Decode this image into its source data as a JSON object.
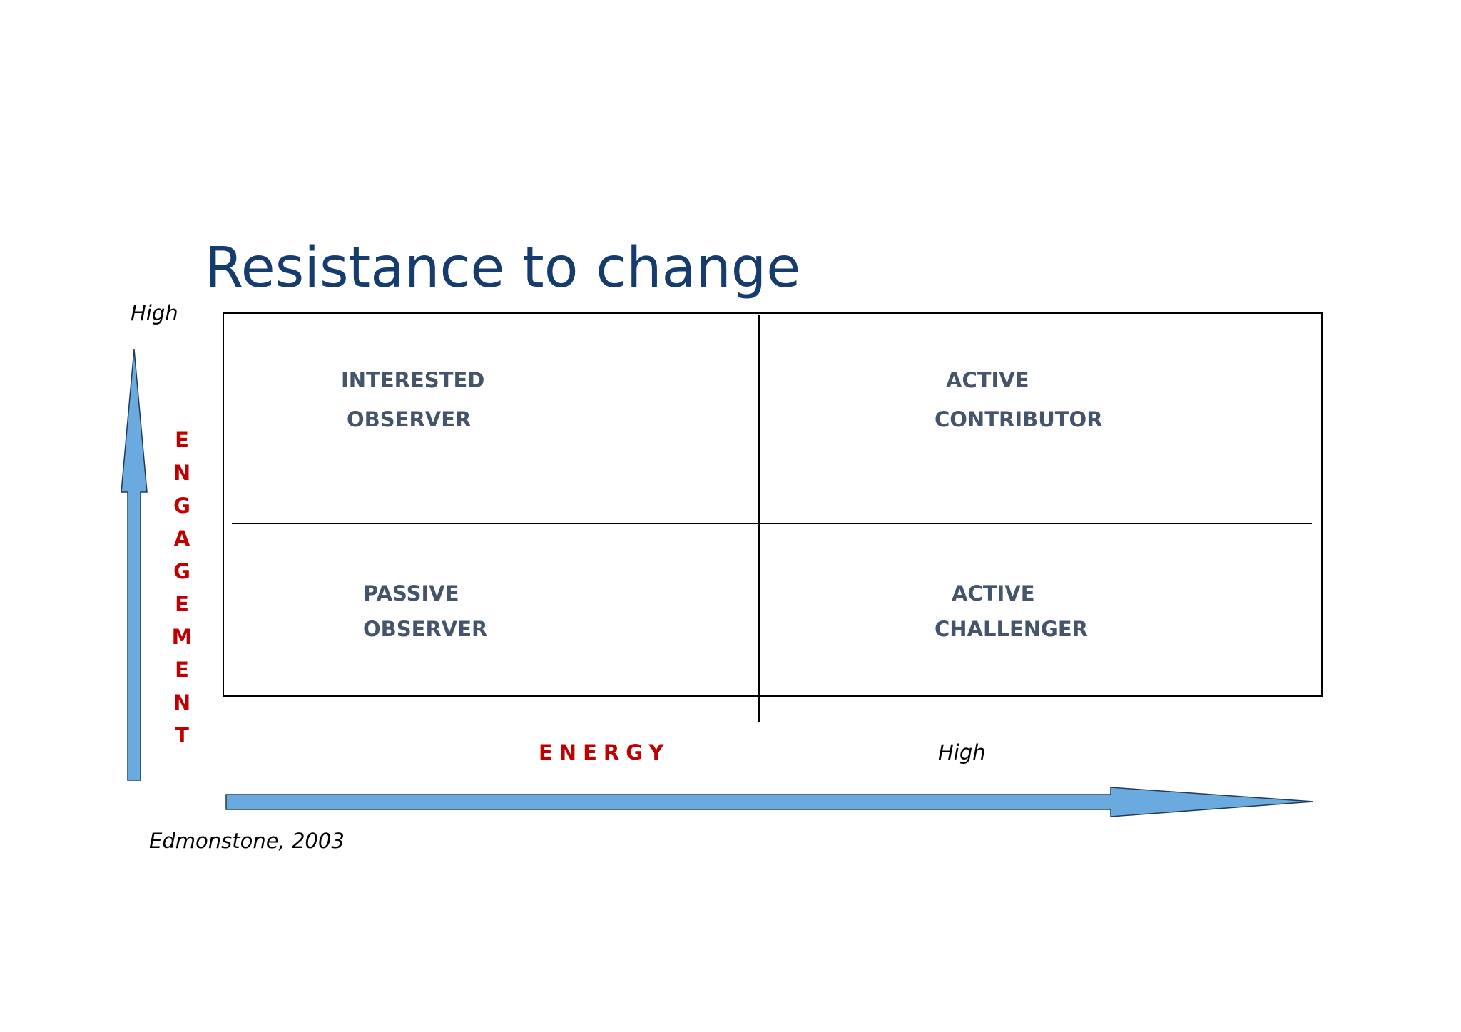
{
  "title": "Resistance to change",
  "y_axis": {
    "label": "ENGAGEMENT",
    "high": "High"
  },
  "x_axis": {
    "label": "ENERGY",
    "high": "High"
  },
  "quadrants": [
    {
      "lines": [
        "INTERESTED",
        "OBSERVER"
      ]
    },
    {
      "lines": [
        "ACTIVE",
        "CONTRIBUTOR"
      ]
    },
    {
      "lines": [
        "PASSIVE",
        "OBSERVER"
      ]
    },
    {
      "lines": [
        "ACTIVE",
        "CHALLENGER"
      ]
    }
  ],
  "citation": "Edmonstone, 2003"
}
